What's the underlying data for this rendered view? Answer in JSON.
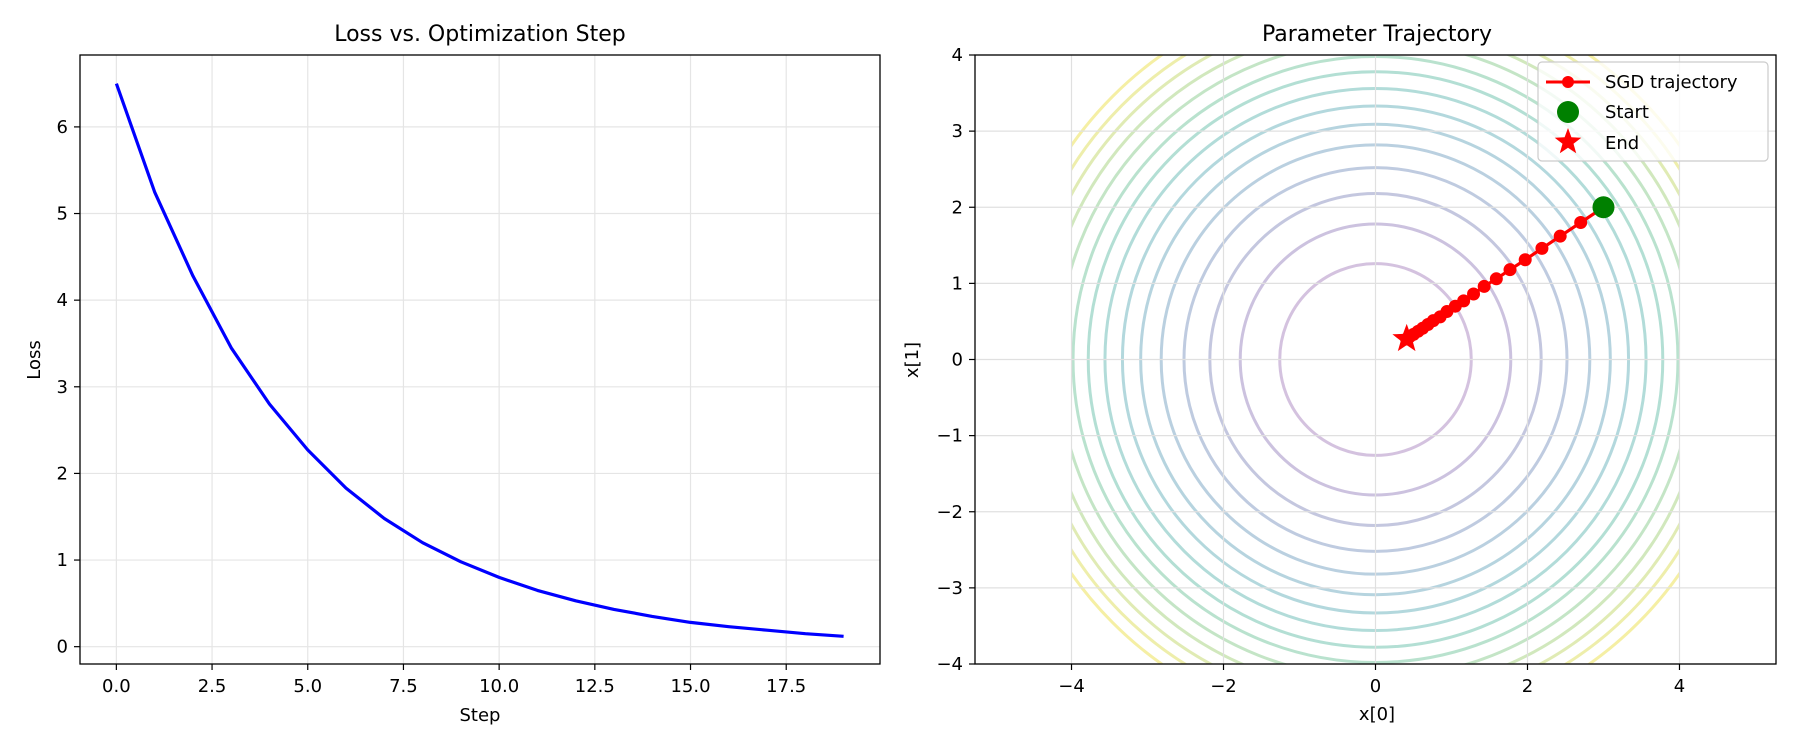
{
  "chart_data": [
    {
      "type": "line",
      "title": "Loss vs. Optimization Step",
      "xlabel": "Step",
      "ylabel": "Loss",
      "xlim": [
        -0.95,
        19.95
      ],
      "ylim": [
        -0.2,
        6.83
      ],
      "xticks": [
        0,
        2.5,
        5,
        7.5,
        10,
        12.5,
        15,
        17.5
      ],
      "xtick_labels": [
        "0.0",
        "2.5",
        "5.0",
        "7.5",
        "10.0",
        "12.5",
        "15.0",
        "17.5"
      ],
      "yticks": [
        0,
        1,
        2,
        3,
        4,
        5,
        6
      ],
      "ytick_labels": [
        "0",
        "1",
        "2",
        "3",
        "4",
        "5",
        "6"
      ],
      "grid": true,
      "series": [
        {
          "name": "loss",
          "color": "#0000ff",
          "x": [
            0,
            1,
            2,
            3,
            4,
            5,
            6,
            7,
            8,
            9,
            10,
            11,
            12,
            13,
            14,
            15,
            16,
            17,
            18,
            19
          ],
          "y": [
            6.5,
            5.25,
            4.28,
            3.45,
            2.8,
            2.27,
            1.83,
            1.48,
            1.2,
            0.98,
            0.8,
            0.65,
            0.53,
            0.43,
            0.35,
            0.28,
            0.23,
            0.19,
            0.15,
            0.12
          ]
        }
      ]
    },
    {
      "type": "line",
      "title": "Parameter Trajectory",
      "xlabel": "x[0]",
      "ylabel": "x[1]",
      "xlim": [
        -5.27,
        5.27
      ],
      "ylim": [
        -4,
        4
      ],
      "xticks": [
        -4,
        -2,
        0,
        2,
        4
      ],
      "xtick_labels": [
        "−4",
        "−2",
        "0",
        "2",
        "4"
      ],
      "yticks": [
        -4,
        -3,
        -2,
        -1,
        0,
        1,
        2,
        3,
        4
      ],
      "ytick_labels": [
        "−4",
        "−3",
        "−2",
        "−1",
        "0",
        "1",
        "2",
        "3",
        "4"
      ],
      "grid": true,
      "contours": {
        "center": [
          0,
          0
        ],
        "radii": [
          1.26,
          1.78,
          2.18,
          2.52,
          2.82,
          3.09,
          3.33,
          3.56,
          3.78,
          3.98,
          4.18,
          4.37,
          4.55,
          4.72,
          4.89
        ],
        "domain": [
          -4,
          4
        ],
        "colors": [
          "#c6aed4",
          "#bbaed4",
          "#b0b4d4",
          "#a9bad6",
          "#a3c0d6",
          "#9ec6d4",
          "#9acbd2",
          "#98d0cc",
          "#9ad4c5",
          "#a2d8bd",
          "#b0dcb3",
          "#c2e0a7",
          "#d6e49b",
          "#e8e88f",
          "#f2ea85"
        ]
      },
      "series": [
        {
          "name": "SGD trajectory",
          "color": "#ff0000",
          "x": [
            3.0,
            2.7,
            2.43,
            2.19,
            1.97,
            1.77,
            1.59,
            1.43,
            1.29,
            1.16,
            1.05,
            0.94,
            0.85,
            0.76,
            0.69,
            0.62,
            0.56,
            0.5,
            0.45,
            0.41
          ],
          "y": [
            2.0,
            1.8,
            1.62,
            1.46,
            1.31,
            1.18,
            1.06,
            0.96,
            0.86,
            0.77,
            0.7,
            0.63,
            0.56,
            0.51,
            0.46,
            0.41,
            0.37,
            0.33,
            0.3,
            0.27
          ]
        }
      ],
      "start": {
        "name": "Start",
        "x": 3.0,
        "y": 2.0,
        "color": "#008000"
      },
      "end": {
        "name": "End",
        "x": 0.41,
        "y": 0.27,
        "color": "#ff0000"
      },
      "legend": {
        "position": "top-right",
        "entries": [
          "SGD trajectory",
          "Start",
          "End"
        ]
      }
    }
  ]
}
